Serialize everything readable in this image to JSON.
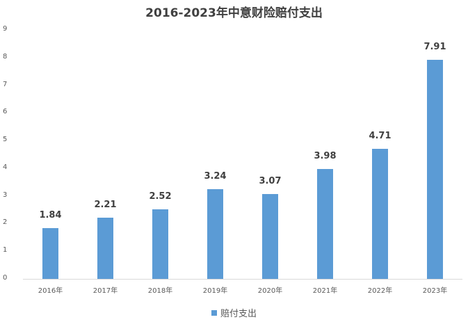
{
  "chart_data": {
    "type": "bar",
    "title": "2016-2023年中意财险赔付支出",
    "categories": [
      "2016年",
      "2017年",
      "2018年",
      "2019年",
      "2020年",
      "2021年",
      "2022年",
      "2023年"
    ],
    "series": [
      {
        "name": "赔付支出",
        "values": [
          1.84,
          2.21,
          2.52,
          3.24,
          3.07,
          3.98,
          4.71,
          7.91
        ],
        "color": "#5b9bd5"
      }
    ],
    "xlabel": "",
    "ylabel": "",
    "ylim": [
      0,
      9
    ],
    "yticks": [
      0,
      1,
      2,
      3,
      4,
      5,
      6,
      7,
      8,
      9
    ],
    "grid": false,
    "legend_position": "bottom",
    "data_labels": true
  }
}
